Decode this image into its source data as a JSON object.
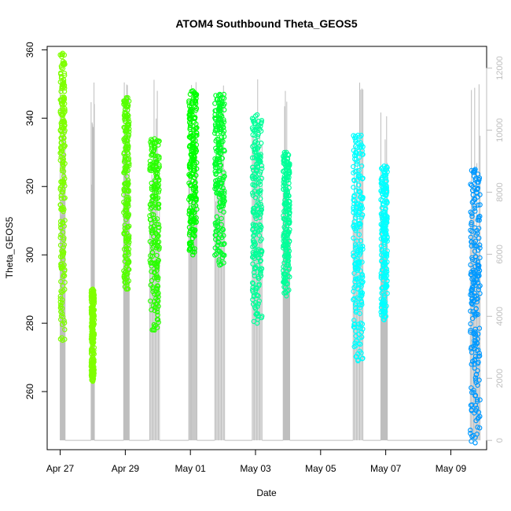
{
  "chart_data": {
    "type": "scatter",
    "title": "ATOM4 Southbound Theta_GEOS5",
    "xlabel": "Date",
    "ylabel": "Theta_GEOS5",
    "x_tick_labels": [
      "Apr 27",
      "Apr 29",
      "May 01",
      "May 03",
      "May 05",
      "May 07",
      "May 09"
    ],
    "x_tick_days": [
      0,
      2,
      4,
      6,
      8,
      10,
      12
    ],
    "xlim_days": [
      -0.4,
      13.1
    ],
    "y_ticks": [
      260,
      280,
      300,
      320,
      340,
      360
    ],
    "ylim": [
      243,
      361
    ],
    "y2_ticks": [
      0,
      2000,
      4000,
      6000,
      8000,
      10000,
      12000
    ],
    "y2_tick_labels": [
      "0",
      "2000",
      "4000",
      "6000",
      "8000",
      "10000",
      "12000"
    ],
    "y2lim": [
      -300,
      12700
    ],
    "y2_series": "altitude (grey trace, right axis)",
    "flights": [
      {
        "t0": 0.0,
        "t1": 0.15,
        "ymin": 275,
        "ymax": 359,
        "color": "#7FFF00"
      },
      {
        "t0": 0.95,
        "t1": 1.05,
        "ymin": 263,
        "ymax": 290,
        "color": "#7FFF00"
      },
      {
        "t0": 1.95,
        "t1": 2.12,
        "ymin": 290,
        "ymax": 346,
        "color": "#55FF00"
      },
      {
        "t0": 2.75,
        "t1": 3.05,
        "ymin": 278,
        "ymax": 334,
        "color": "#2AFF00"
      },
      {
        "t0": 3.95,
        "t1": 4.2,
        "ymin": 300,
        "ymax": 348,
        "color": "#00FF00"
      },
      {
        "t0": 4.75,
        "t1": 5.05,
        "ymin": 297,
        "ymax": 347,
        "color": "#00FF2A"
      },
      {
        "t0": 5.9,
        "t1": 6.2,
        "ymin": 280,
        "ymax": 341,
        "color": "#00FF99"
      },
      {
        "t0": 6.85,
        "t1": 7.05,
        "ymin": 288,
        "ymax": 330,
        "color": "#00FF99"
      },
      {
        "t0": 9.0,
        "t1": 9.3,
        "ymin": 269,
        "ymax": 335,
        "color": "#00FFFF"
      },
      {
        "t0": 9.85,
        "t1": 10.05,
        "ymin": 281,
        "ymax": 326,
        "color": "#00FFFF"
      },
      {
        "t0": 12.6,
        "t1": 12.9,
        "ymin": 245,
        "ymax": 325,
        "color": "#0099FF"
      }
    ]
  }
}
